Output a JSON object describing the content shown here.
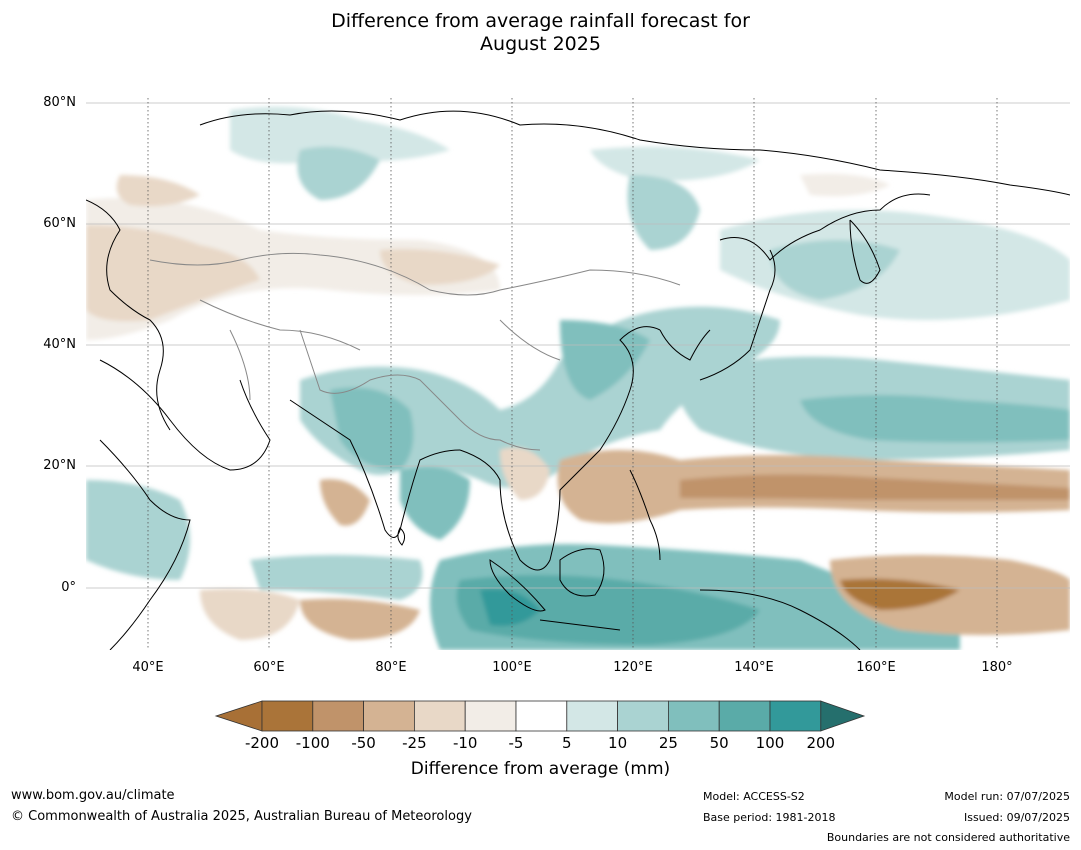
{
  "title": {
    "line1": "Difference from average rainfall forecast for",
    "line2": "August 2025"
  },
  "map": {
    "region": "Asia",
    "lat_labels": [
      "80°N",
      "60°N",
      "40°N",
      "20°N",
      "0°"
    ],
    "lon_labels": [
      "40°E",
      "60°E",
      "80°E",
      "100°E",
      "120°E",
      "140°E",
      "160°E",
      "180°"
    ],
    "land_color": "#ffffff",
    "coastline_color": "#000000",
    "border_color": "#888888"
  },
  "colorbar": {
    "title": "Difference from average (mm)",
    "tick_labels": [
      "-200",
      "-100",
      "-50",
      "-25",
      "-10",
      "-5",
      "5",
      "10",
      "25",
      "50",
      "100",
      "200"
    ],
    "colors": [
      "#a87036",
      "#aa7439",
      "#c0936a",
      "#d4b393",
      "#e8d8c7",
      "#f2ede7",
      "#ffffff",
      "#d3e7e6",
      "#aad3d2",
      "#80bfbd",
      "#5aaba8",
      "#32999a",
      "#1f7471"
    ],
    "extend_low_color": "#a87036",
    "extend_high_color": "#256f6d"
  },
  "footer": {
    "website": "www.bom.gov.au/climate",
    "copyright": "© Commonwealth of Australia 2025, Australian Bureau of Meteorology",
    "model": "Model: ACCESS-S2",
    "base_period": "Base period: 1981-2018",
    "model_run": "Model run: 07/07/2025",
    "issued": "Issued: 09/07/2025",
    "disclaimer": "Boundaries are not considered authoritative"
  }
}
